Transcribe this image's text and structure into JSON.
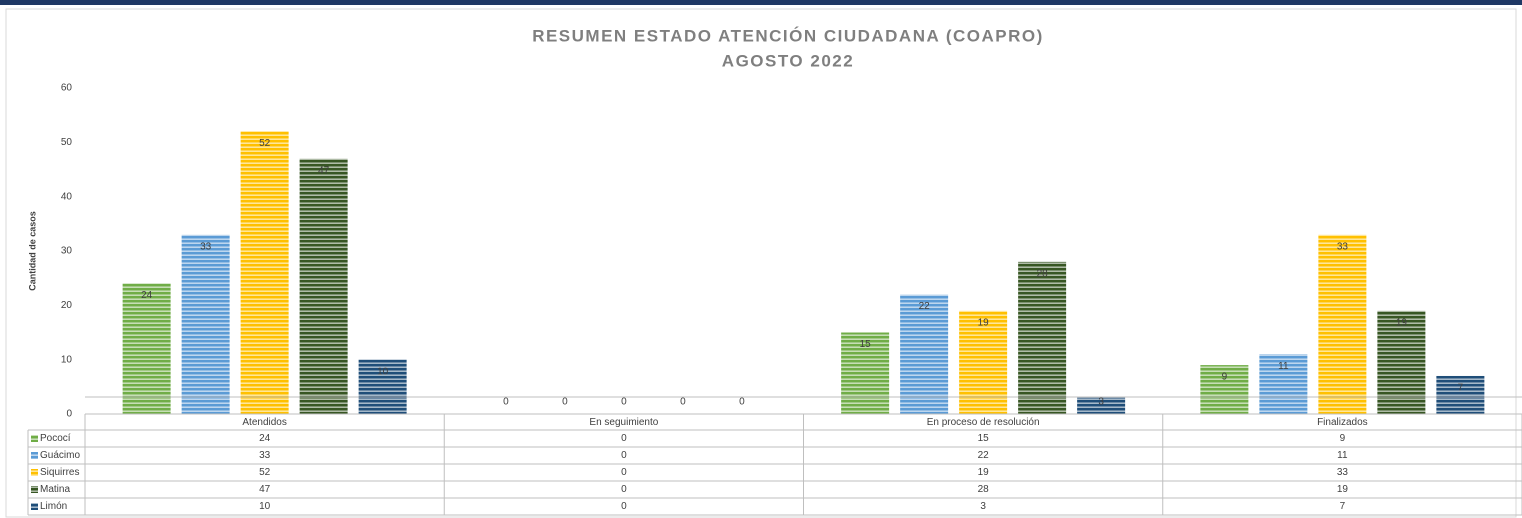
{
  "chart_data": {
    "type": "bar",
    "title": "RESUMEN ESTADO ATENCIÓN CIUDADANA (COAPRO)",
    "subtitle": "AGOSTO 2022",
    "y_label": "Cantidad de casos",
    "categories": [
      "Atendidos",
      "En seguimiento",
      "En proceso de resolución",
      "Finalizados"
    ],
    "series": [
      {
        "name": "Pococí",
        "color": "#70ad47",
        "values": [
          24,
          0,
          15,
          9
        ]
      },
      {
        "name": "Guácimo",
        "color": "#5b9bd5",
        "values": [
          33,
          0,
          22,
          11
        ]
      },
      {
        "name": "Siquirres",
        "color": "#ffc000",
        "values": [
          52,
          0,
          19,
          33
        ]
      },
      {
        "name": "Matina",
        "color": "#375623",
        "values": [
          47,
          0,
          28,
          19
        ]
      },
      {
        "name": "Limón",
        "color": "#1f4e79",
        "values": [
          10,
          0,
          3,
          7
        ]
      }
    ],
    "ylim": [
      0,
      60
    ],
    "yticks": [
      0,
      10,
      20,
      30,
      40,
      50,
      60
    ],
    "grid": false
  }
}
